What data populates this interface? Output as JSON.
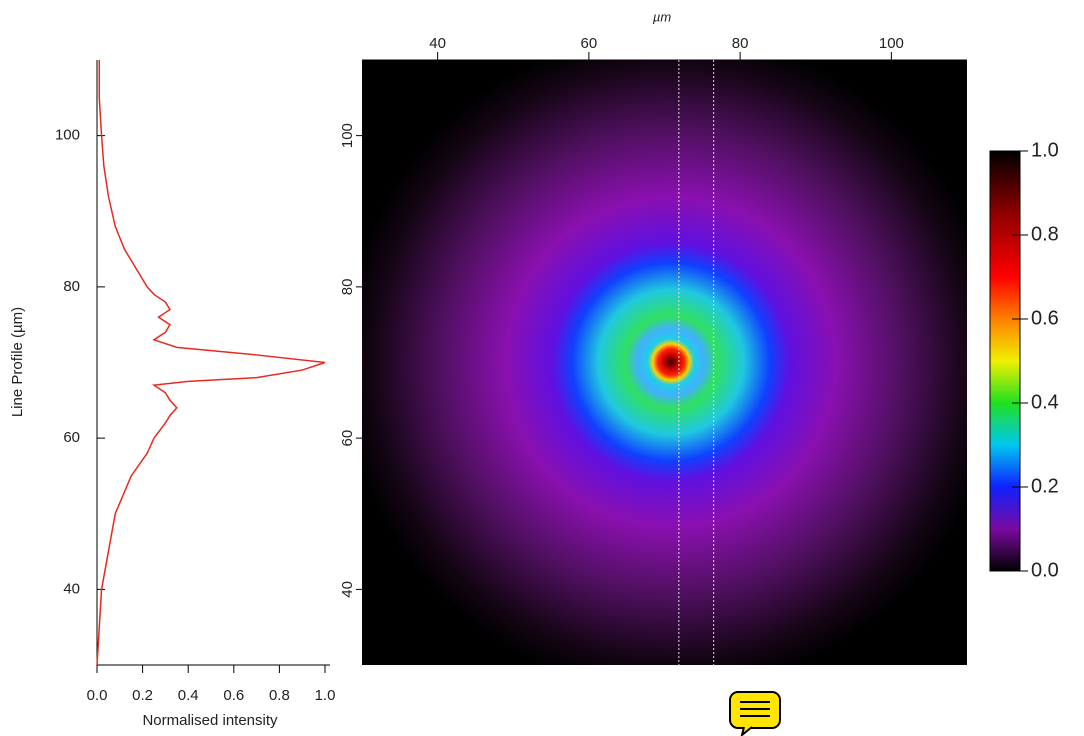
{
  "chart_data": [
    {
      "type": "line",
      "orientation": "vertical",
      "xlabel": "Normalised intensity",
      "ylabel": "Line Profile (µm)",
      "y": [
        30,
        35,
        40,
        45,
        50,
        55,
        58,
        60,
        62,
        63,
        64,
        65,
        66,
        67,
        67.5,
        68,
        69,
        70,
        71,
        72,
        73,
        74,
        75,
        76,
        77,
        78,
        79,
        80,
        82,
        85,
        88,
        92,
        96,
        100,
        105,
        110
      ],
      "values": [
        0.0,
        0.01,
        0.02,
        0.05,
        0.08,
        0.15,
        0.22,
        0.25,
        0.3,
        0.32,
        0.35,
        0.32,
        0.3,
        0.25,
        0.4,
        0.7,
        0.9,
        1.0,
        0.7,
        0.35,
        0.25,
        0.3,
        0.32,
        0.27,
        0.32,
        0.3,
        0.25,
        0.22,
        0.18,
        0.12,
        0.08,
        0.05,
        0.03,
        0.02,
        0.01,
        0.01
      ],
      "color": "#e8291f",
      "xlim": [
        0,
        1
      ],
      "xticks": [
        {
          "value": 0,
          "label": "0.0"
        },
        {
          "value": 0.2,
          "label": "0.2"
        },
        {
          "value": 0.4,
          "label": "0.4"
        },
        {
          "value": 0.6,
          "label": "0.6"
        },
        {
          "value": 0.8,
          "label": "0.8"
        },
        {
          "value": 1,
          "label": "1.0"
        }
      ],
      "ylim": [
        30,
        110
      ],
      "yticks": [
        40,
        60,
        80,
        100
      ]
    },
    {
      "type": "heatmap",
      "xlabel": "µm",
      "xlim": [
        30,
        110
      ],
      "xticks": [
        40,
        60,
        80,
        100
      ],
      "ylim": [
        30,
        110
      ],
      "yticks": [
        40,
        60,
        80,
        100
      ],
      "vlines": [
        71.9,
        76.5
      ],
      "colorbar": {
        "lim": [
          0,
          1
        ],
        "ticks": [
          {
            "value": 0,
            "label": "0.0"
          },
          {
            "value": 0.2,
            "label": "0.2"
          },
          {
            "value": 0.4,
            "label": "0.4"
          },
          {
            "value": 0.6,
            "label": "0.6"
          },
          {
            "value": 0.8,
            "label": "0.8"
          },
          {
            "value": 1,
            "label": "1.0"
          }
        ]
      }
    }
  ]
}
